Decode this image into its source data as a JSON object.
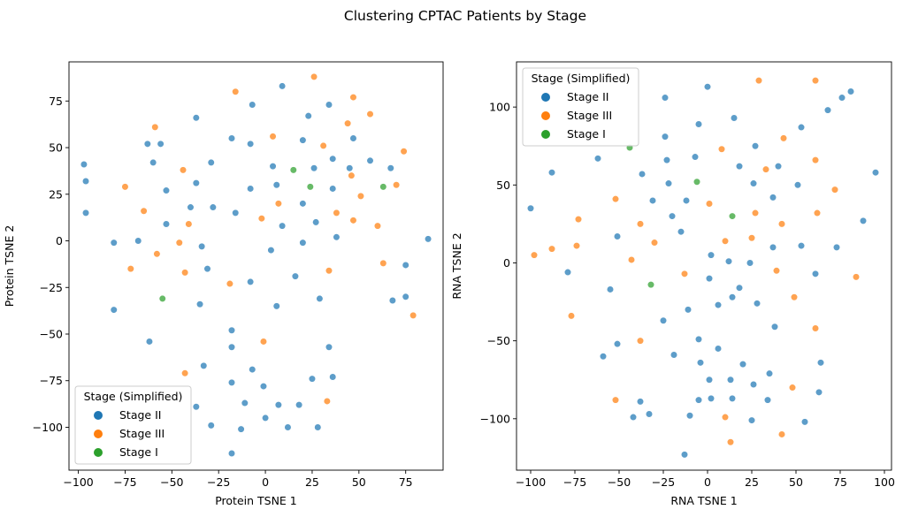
{
  "chart_data": {
    "suptitle": "Clustering CPTAC Patients by Stage",
    "subplots": [
      {
        "type": "scatter",
        "xlabel": "Protein TSNE 1",
        "ylabel": "Protein TSNE 2",
        "xlim": [
          -105,
          95
        ],
        "ylim": [
          -123,
          96
        ],
        "xticks": [
          -100,
          -75,
          -50,
          -25,
          0,
          25,
          50,
          75
        ],
        "yticks": [
          -100,
          -75,
          -50,
          -25,
          0,
          25,
          50,
          75
        ],
        "grid": false,
        "legend": {
          "title": "Stage (Simplified)",
          "placement": "lower-left",
          "entries": [
            "Stage II",
            "Stage III",
            "Stage I"
          ]
        },
        "series": [
          {
            "name": "Stage II",
            "color": "#1f77b4",
            "points": [
              [
                -97,
                41
              ],
              [
                -96,
                32
              ],
              [
                -96,
                15
              ],
              [
                -81,
                -1
              ],
              [
                -81,
                -37
              ],
              [
                -68,
                0
              ],
              [
                -63,
                52
              ],
              [
                -62,
                -54
              ],
              [
                -60,
                42
              ],
              [
                -56,
                52
              ],
              [
                -53,
                27
              ],
              [
                -53,
                9
              ],
              [
                -40,
                18
              ],
              [
                -37,
                31
              ],
              [
                -37,
                66
              ],
              [
                -35,
                -34
              ],
              [
                -34,
                -3
              ],
              [
                -33,
                -67
              ],
              [
                -37,
                -89
              ],
              [
                -31,
                -15
              ],
              [
                -29,
                42
              ],
              [
                -28,
                18
              ],
              [
                -29,
                -99
              ],
              [
                -18,
                55
              ],
              [
                -18,
                -48
              ],
              [
                -18,
                -57
              ],
              [
                -18,
                -76
              ],
              [
                -16,
                15
              ],
              [
                -18,
                -114
              ],
              [
                -7,
                73
              ],
              [
                -8,
                52
              ],
              [
                -8,
                28
              ],
              [
                -8,
                -22
              ],
              [
                -7,
                -69
              ],
              [
                -11,
                -87
              ],
              [
                -13,
                -101
              ],
              [
                -1,
                -78
              ],
              [
                0,
                -95
              ],
              [
                4,
                40
              ],
              [
                3,
                -5
              ],
              [
                6,
                30
              ],
              [
                6,
                -35
              ],
              [
                9,
                83
              ],
              [
                9,
                8
              ],
              [
                7,
                -88
              ],
              [
                16,
                -19
              ],
              [
                20,
                54
              ],
              [
                20,
                -1
              ],
              [
                20,
                20
              ],
              [
                18,
                -88
              ],
              [
                12,
                -100
              ],
              [
                23,
                67
              ],
              [
                25,
                -74
              ],
              [
                26,
                39
              ],
              [
                27,
                10
              ],
              [
                29,
                -31
              ],
              [
                34,
                73
              ],
              [
                34,
                -57
              ],
              [
                36,
                -73
              ],
              [
                36,
                44
              ],
              [
                36,
                28
              ],
              [
                38,
                2
              ],
              [
                28,
                -100
              ],
              [
                45,
                39
              ],
              [
                47,
                55
              ],
              [
                56,
                43
              ],
              [
                67,
                39
              ],
              [
                68,
                -32
              ],
              [
                75,
                -13
              ],
              [
                75,
                -30
              ],
              [
                87,
                1
              ]
            ]
          },
          {
            "name": "Stage III",
            "color": "#ff7f0e",
            "points": [
              [
                -75,
                29
              ],
              [
                -72,
                -15
              ],
              [
                -65,
                16
              ],
              [
                -59,
                61
              ],
              [
                -58,
                -7
              ],
              [
                -46,
                -1
              ],
              [
                -44,
                38
              ],
              [
                -43,
                -17
              ],
              [
                -43,
                -71
              ],
              [
                -41,
                9
              ],
              [
                -19,
                -23
              ],
              [
                -16,
                80
              ],
              [
                -2,
                12
              ],
              [
                -1,
                -54
              ],
              [
                4,
                56
              ],
              [
                7,
                20
              ],
              [
                26,
                88
              ],
              [
                31,
                51
              ],
              [
                34,
                -16
              ],
              [
                33,
                -86
              ],
              [
                38,
                15
              ],
              [
                44,
                63
              ],
              [
                47,
                77
              ],
              [
                47,
                11
              ],
              [
                46,
                35
              ],
              [
                51,
                24
              ],
              [
                56,
                68
              ],
              [
                60,
                8
              ],
              [
                63,
                -12
              ],
              [
                70,
                30
              ],
              [
                74,
                48
              ],
              [
                79,
                -40
              ]
            ]
          },
          {
            "name": "Stage I",
            "color": "#2ca02c",
            "points": [
              [
                -55,
                -31
              ],
              [
                15,
                38
              ],
              [
                24,
                29
              ],
              [
                63,
                29
              ]
            ]
          }
        ]
      },
      {
        "type": "scatter",
        "xlabel": "RNA TSNE 1",
        "ylabel": "RNA TSNE 2",
        "xlim": [
          -108,
          104
        ],
        "ylim": [
          -133,
          129
        ],
        "xticks": [
          -100,
          -75,
          -50,
          -25,
          0,
          25,
          50,
          75,
          100
        ],
        "yticks": [
          -100,
          -50,
          0,
          50,
          100
        ],
        "grid": false,
        "legend": {
          "title": "Stage (Simplified)",
          "placement": "upper-left",
          "entries": [
            "Stage II",
            "Stage III",
            "Stage I"
          ]
        },
        "series": [
          {
            "name": "Stage II",
            "color": "#1f77b4",
            "points": [
              [
                -100,
                35
              ],
              [
                -88,
                58
              ],
              [
                -79,
                -6
              ],
              [
                -62,
                67
              ],
              [
                -55,
                -17
              ],
              [
                -51,
                -52
              ],
              [
                -51,
                17
              ],
              [
                -59,
                -60
              ],
              [
                -42,
                -99
              ],
              [
                -37,
                57
              ],
              [
                -38,
                -89
              ],
              [
                -33,
                -97
              ],
              [
                -31,
                40
              ],
              [
                -25,
                -37
              ],
              [
                -24,
                106
              ],
              [
                -24,
                81
              ],
              [
                -23,
                66
              ],
              [
                -22,
                51
              ],
              [
                -20,
                30
              ],
              [
                -19,
                -59
              ],
              [
                -15,
                20
              ],
              [
                -13,
                -123
              ],
              [
                -12,
                40
              ],
              [
                -11,
                -30
              ],
              [
                -10,
                -98
              ],
              [
                -7,
                68
              ],
              [
                -5,
                89
              ],
              [
                -5,
                -49
              ],
              [
                -4,
                -64
              ],
              [
                -5,
                -88
              ],
              [
                0,
                113
              ],
              [
                1,
                -10
              ],
              [
                1,
                -75
              ],
              [
                2,
                -87
              ],
              [
                2,
                5
              ],
              [
                6,
                -27
              ],
              [
                6,
                -55
              ],
              [
                12,
                1
              ],
              [
                13,
                -75
              ],
              [
                14,
                -87
              ],
              [
                14,
                -22
              ],
              [
                15,
                93
              ],
              [
                18,
                62
              ],
              [
                18,
                -16
              ],
              [
                20,
                -65
              ],
              [
                24,
                0
              ],
              [
                25,
                -101
              ],
              [
                26,
                51
              ],
              [
                26,
                -78
              ],
              [
                27,
                75
              ],
              [
                28,
                -26
              ],
              [
                34,
                -88
              ],
              [
                35,
                -71
              ],
              [
                37,
                42
              ],
              [
                37,
                10
              ],
              [
                38,
                -41
              ],
              [
                40,
                62
              ],
              [
                51,
                50
              ],
              [
                53,
                87
              ],
              [
                53,
                11
              ],
              [
                61,
                -7
              ],
              [
                64,
                -64
              ],
              [
                63,
                -83
              ],
              [
                68,
                98
              ],
              [
                73,
                10
              ],
              [
                76,
                106
              ],
              [
                81,
                110
              ],
              [
                88,
                27
              ],
              [
                95,
                58
              ],
              [
                55,
                -102
              ]
            ]
          },
          {
            "name": "Stage III",
            "color": "#ff7f0e",
            "points": [
              [
                -98,
                5
              ],
              [
                -88,
                9
              ],
              [
                -77,
                -34
              ],
              [
                -74,
                11
              ],
              [
                -73,
                28
              ],
              [
                -52,
                41
              ],
              [
                -52,
                -88
              ],
              [
                -38,
                25
              ],
              [
                -38,
                -50
              ],
              [
                -43,
                2
              ],
              [
                -30,
                13
              ],
              [
                -13,
                -7
              ],
              [
                8,
                73
              ],
              [
                1,
                38
              ],
              [
                10,
                14
              ],
              [
                10,
                -99
              ],
              [
                13,
                -115
              ],
              [
                25,
                16
              ],
              [
                27,
                32
              ],
              [
                29,
                117
              ],
              [
                33,
                60
              ],
              [
                39,
                -5
              ],
              [
                42,
                25
              ],
              [
                42,
                -110
              ],
              [
                43,
                80
              ],
              [
                49,
                -22
              ],
              [
                48,
                -80
              ],
              [
                61,
                117
              ],
              [
                61,
                -42
              ],
              [
                61,
                66
              ],
              [
                62,
                32
              ],
              [
                72,
                47
              ],
              [
                84,
                -9
              ]
            ]
          },
          {
            "name": "Stage I",
            "color": "#2ca02c",
            "points": [
              [
                -44,
                74
              ],
              [
                -6,
                52
              ],
              [
                14,
                30
              ],
              [
                -32,
                -14
              ]
            ]
          }
        ]
      }
    ]
  }
}
